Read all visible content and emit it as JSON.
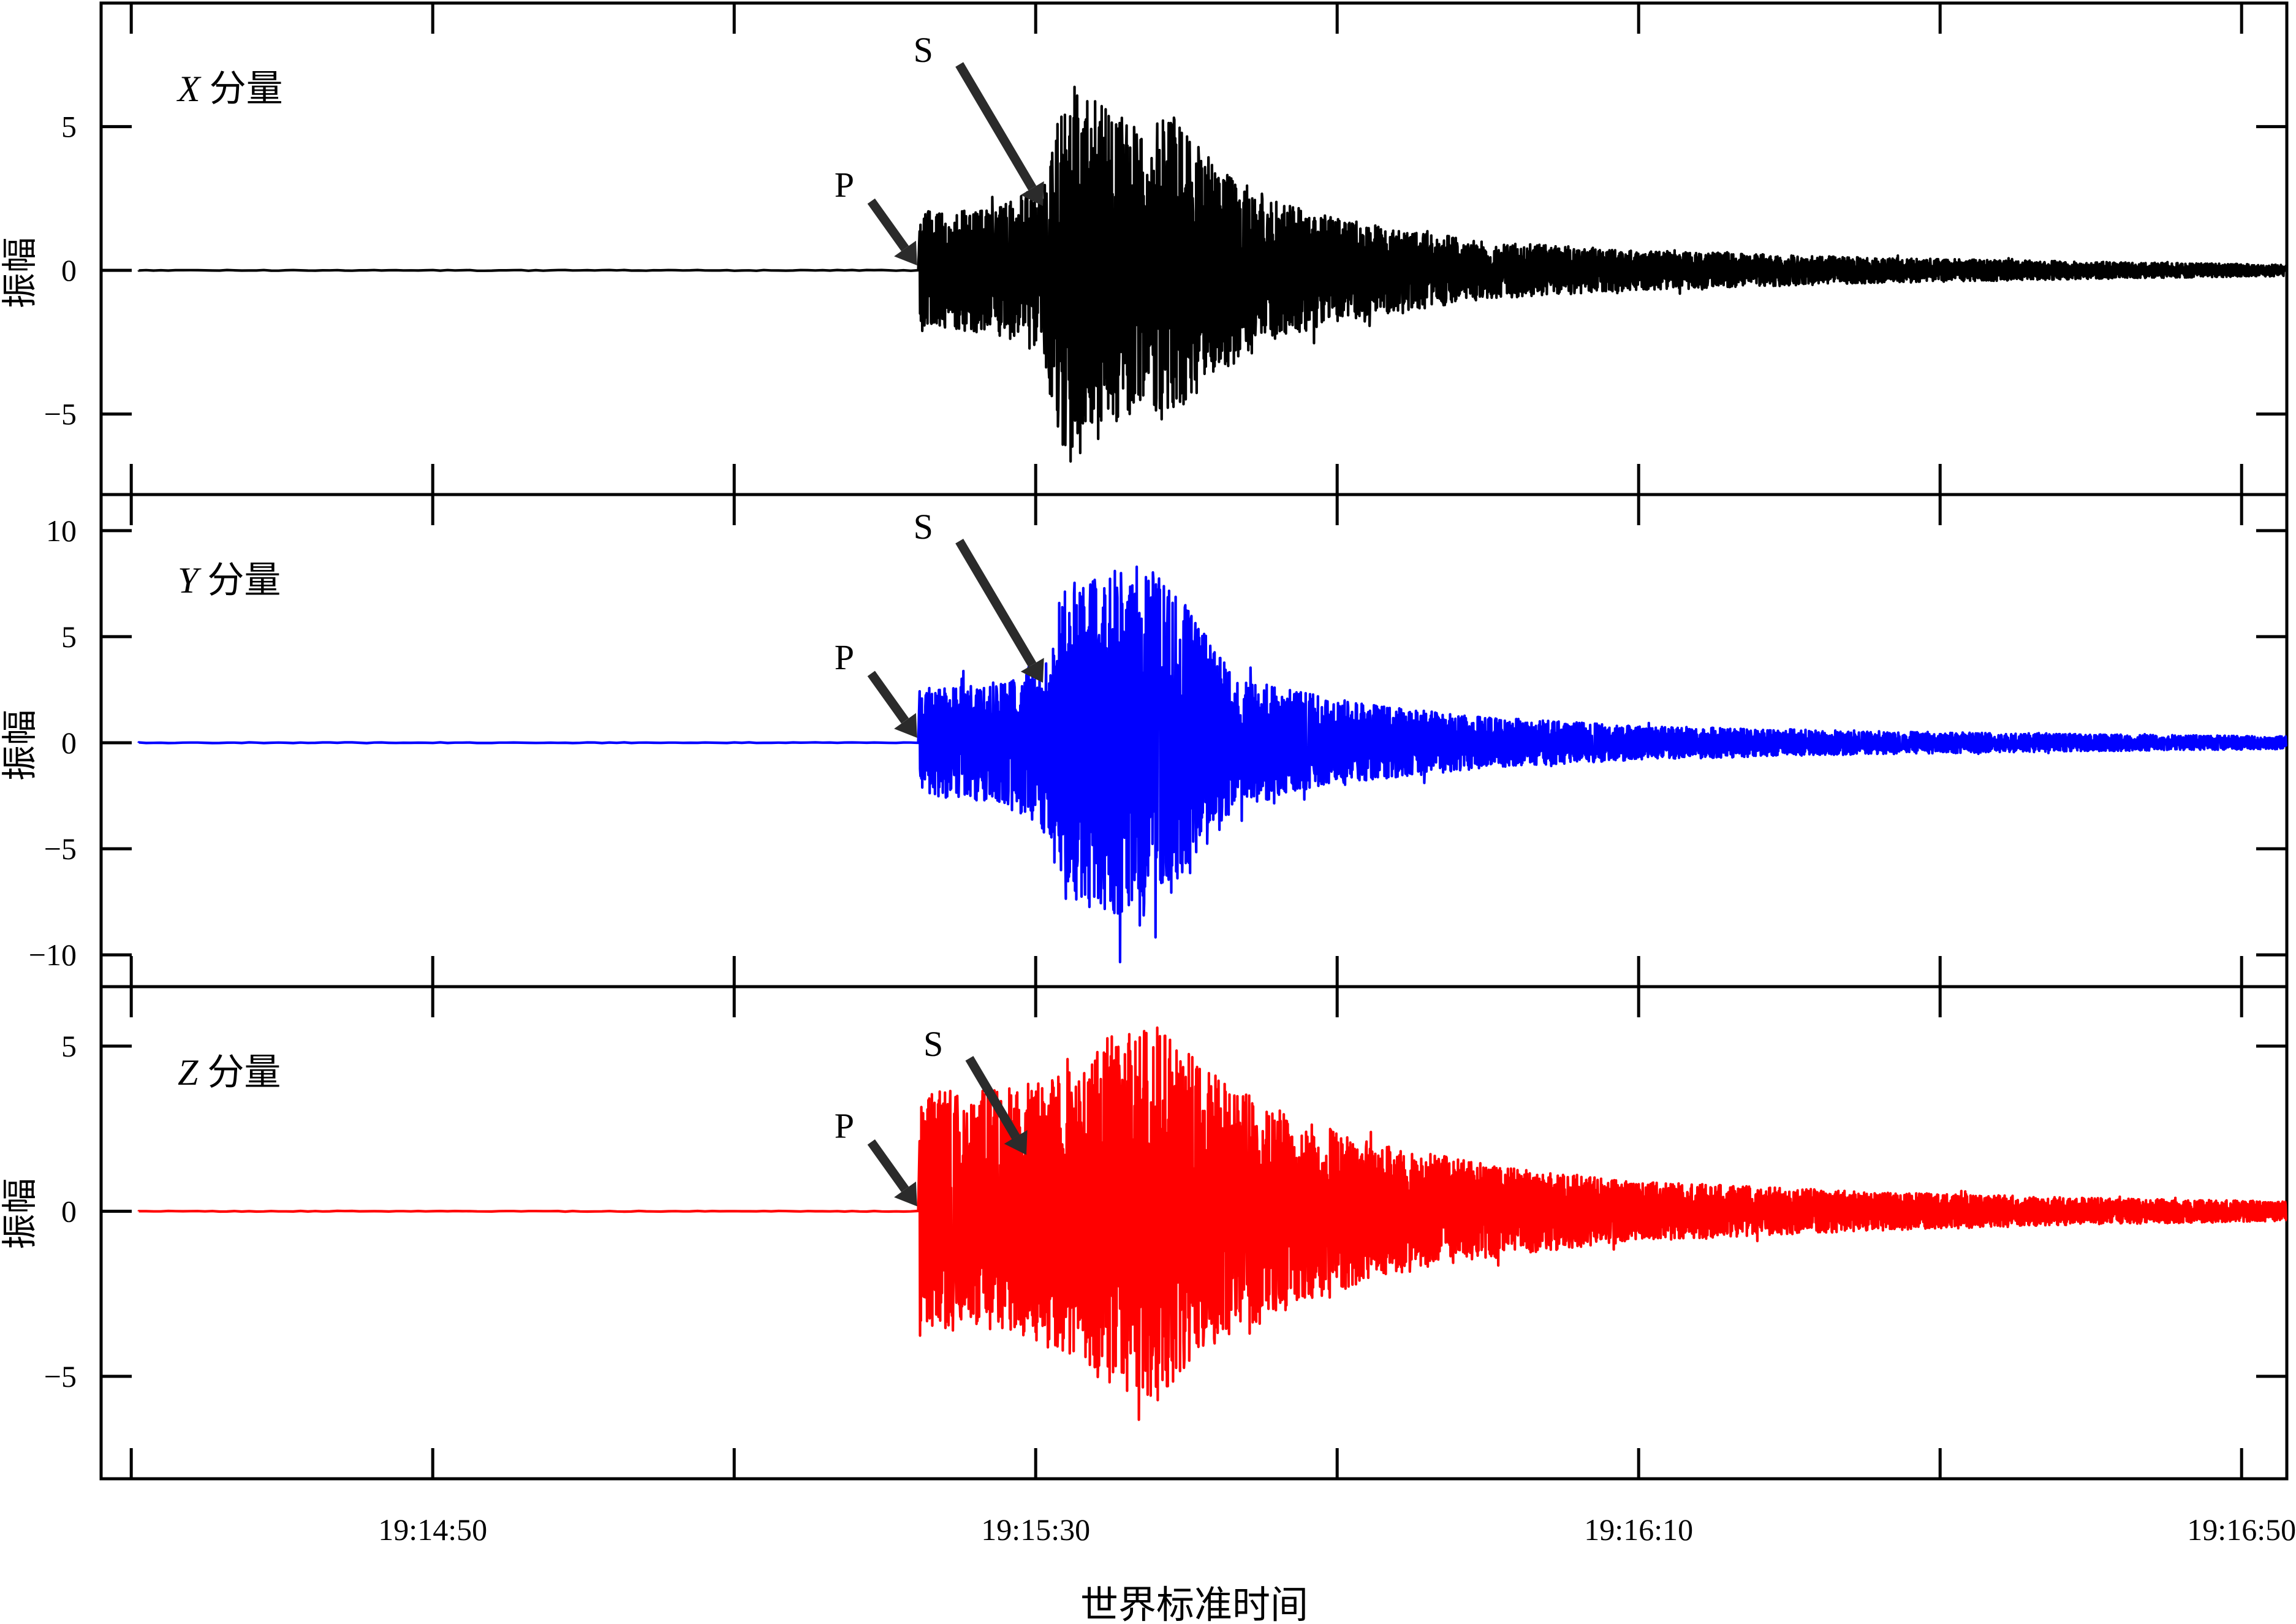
{
  "chart_data": {
    "type": "line",
    "xlabel": "世界标准时间",
    "x_ticks": {
      "labeled": [
        "19:14:50",
        "19:15:30",
        "19:16:10",
        "19:16:50"
      ],
      "label_positions_s": [
        20,
        60,
        100,
        140
      ],
      "major_positions_s": [
        0,
        20,
        40,
        60,
        80,
        100,
        120,
        140
      ]
    },
    "x_range_s": [
      -2,
      143
    ],
    "x_origin_time": "19:14:30",
    "panels": [
      {
        "name": "X",
        "label_italic": "X",
        "label_text": "分量",
        "ylabel": "振幅",
        "color": "#000000",
        "ylim": [
          -7.8,
          9.3
        ],
        "yticks": [
          -5,
          0,
          5
        ],
        "ytick_labels": [
          "−5",
          "0",
          "5"
        ],
        "p_arrival_s": 52.3,
        "s_arrival_s": 60.4,
        "p_label": "P",
        "s_label": "S",
        "envelope": [
          {
            "t": 52.3,
            "amp": 2.2
          },
          {
            "t": 54,
            "amp": 2.0
          },
          {
            "t": 58,
            "amp": 2.3
          },
          {
            "t": 60.4,
            "amp": 3.0
          },
          {
            "t": 62,
            "amp": 6.8
          },
          {
            "t": 64,
            "amp": 6.0
          },
          {
            "t": 67,
            "amp": 4.8
          },
          {
            "t": 69,
            "amp": 5.6
          },
          {
            "t": 72,
            "amp": 3.6
          },
          {
            "t": 76,
            "amp": 2.4
          },
          {
            "t": 82,
            "amp": 1.6
          },
          {
            "t": 90,
            "amp": 1.0
          },
          {
            "t": 100,
            "amp": 0.7
          },
          {
            "t": 115,
            "amp": 0.45
          },
          {
            "t": 130,
            "amp": 0.3
          },
          {
            "t": 143,
            "amp": 0.2
          }
        ]
      },
      {
        "name": "Y",
        "label_italic": "Y",
        "label_text": "分量",
        "ylabel": "振幅",
        "color": "#0000ff",
        "ylim": [
          -11.5,
          11.7
        ],
        "yticks": [
          -10,
          -5,
          0,
          5,
          10
        ],
        "ytick_labels": [
          "−10",
          "−5",
          "0",
          "5",
          "10"
        ],
        "p_arrival_s": 52.3,
        "s_arrival_s": 60.4,
        "p_label": "P",
        "s_label": "S",
        "envelope": [
          {
            "t": 52.3,
            "amp": 2.6
          },
          {
            "t": 54,
            "amp": 2.6
          },
          {
            "t": 58,
            "amp": 3.0
          },
          {
            "t": 60.4,
            "amp": 4.0
          },
          {
            "t": 62,
            "amp": 7.6
          },
          {
            "t": 64,
            "amp": 7.8
          },
          {
            "t": 67,
            "amp": 8.8
          },
          {
            "t": 70,
            "amp": 6.5
          },
          {
            "t": 73,
            "amp": 3.4
          },
          {
            "t": 76,
            "amp": 2.6
          },
          {
            "t": 82,
            "amp": 1.8
          },
          {
            "t": 90,
            "amp": 1.2
          },
          {
            "t": 100,
            "amp": 0.8
          },
          {
            "t": 115,
            "amp": 0.55
          },
          {
            "t": 130,
            "amp": 0.4
          },
          {
            "t": 143,
            "amp": 0.3
          }
        ]
      },
      {
        "name": "Z",
        "label_italic": "Z",
        "label_text": "分量",
        "ylabel": "振幅",
        "color": "#ff0000",
        "ylim": [
          -8.1,
          6.8
        ],
        "yticks": [
          -5,
          0,
          5
        ],
        "ytick_labels": [
          "−5",
          "0",
          "5"
        ],
        "p_arrival_s": 52.3,
        "s_arrival_s": 59.3,
        "p_label": "P",
        "s_label": "S",
        "envelope": [
          {
            "t": 52.3,
            "amp": 3.8
          },
          {
            "t": 55,
            "amp": 3.6
          },
          {
            "t": 59.3,
            "amp": 3.8
          },
          {
            "t": 62,
            "amp": 4.6
          },
          {
            "t": 65,
            "amp": 5.3
          },
          {
            "t": 68,
            "amp": 5.8
          },
          {
            "t": 71,
            "amp": 4.4
          },
          {
            "t": 74,
            "amp": 3.6
          },
          {
            "t": 78,
            "amp": 2.7
          },
          {
            "t": 84,
            "amp": 1.9
          },
          {
            "t": 92,
            "amp": 1.3
          },
          {
            "t": 100,
            "amp": 0.9
          },
          {
            "t": 115,
            "amp": 0.6
          },
          {
            "t": 130,
            "amp": 0.4
          },
          {
            "t": 143,
            "amp": 0.3
          }
        ]
      }
    ]
  }
}
